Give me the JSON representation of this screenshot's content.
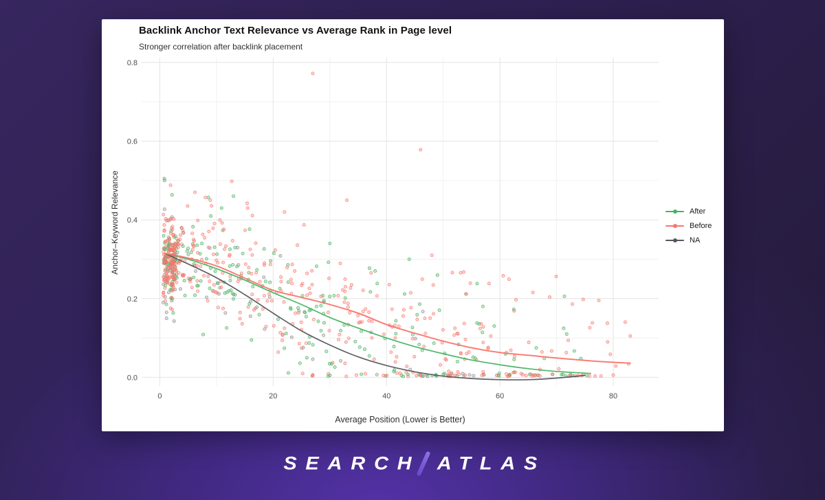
{
  "brand": {
    "left": "SEARCH",
    "right": "ATLAS"
  },
  "chart_data": {
    "type": "scatter",
    "title": "Backlink Anchor Text Relevance vs Average Rank in Page level",
    "subtitle": "Stronger correlation after backlink placement",
    "xlabel": "Average Position (Lower is Better)",
    "ylabel": "Anchor–Keyword Relevance",
    "xlim": [
      -3.2,
      88
    ],
    "ylim": [
      -0.022,
      0.812
    ],
    "x_ticks": [
      0,
      20,
      40,
      60,
      80
    ],
    "x_tick_labels": [
      "0",
      "20",
      "40",
      "60",
      "80"
    ],
    "x_minor": [
      10,
      30,
      50,
      70
    ],
    "y_ticks": [
      0.0,
      0.2,
      0.4,
      0.6,
      0.8
    ],
    "y_tick_labels": [
      "0.0",
      "0.2",
      "0.4",
      "0.6",
      "0.8"
    ],
    "y_minor": [
      0.1,
      0.3,
      0.5,
      0.7
    ],
    "grid": "on",
    "legend_position": "right",
    "seed": 7,
    "colors": {
      "major_grid": "#e4e4e4",
      "minor_grid": "#f1f1f1",
      "tick_text": "#4d4d4d"
    },
    "series": [
      {
        "name": "After",
        "color": "#44b25f",
        "point_color": "#44b25f",
        "trend": [
          [
            1,
            0.314
          ],
          [
            5,
            0.3
          ],
          [
            10,
            0.276
          ],
          [
            15,
            0.247
          ],
          [
            20,
            0.215
          ],
          [
            25,
            0.185
          ],
          [
            30,
            0.152
          ],
          [
            35,
            0.125
          ],
          [
            40,
            0.1
          ],
          [
            45,
            0.078
          ],
          [
            50,
            0.06
          ],
          [
            55,
            0.044
          ],
          [
            60,
            0.032
          ],
          [
            65,
            0.022
          ],
          [
            70,
            0.015
          ],
          [
            76,
            0.01
          ]
        ],
        "outliers": [
          [
            0.8,
            0.505
          ],
          [
            10.9,
            0.43
          ],
          [
            13,
            0.46
          ],
          [
            9,
            0.41
          ],
          [
            30,
            0.34
          ],
          [
            44,
            0.3
          ],
          [
            38,
            0.27
          ],
          [
            57,
            0.18
          ]
        ],
        "cloud": {
          "n": 250,
          "cluster_frac": 0.26,
          "cluster_x": [
            0.6,
            2.8
          ],
          "cluster_y_mean": 0.3,
          "cluster_y_sd": 0.05,
          "tail_pow": 1.7,
          "x_max": 76,
          "sigma0": 0.04,
          "sigma_slope": 0.0007,
          "floor_n": 8,
          "floor_x": [
            20,
            52
          ],
          "floor_y_max": 0.018
        }
      },
      {
        "name": "Before",
        "color": "#f8766d",
        "point_color": "#f8766d",
        "trend": [
          [
            1,
            0.315
          ],
          [
            5,
            0.303
          ],
          [
            10,
            0.283
          ],
          [
            15,
            0.252
          ],
          [
            20,
            0.221
          ],
          [
            25,
            0.203
          ],
          [
            30,
            0.185
          ],
          [
            35,
            0.163
          ],
          [
            40,
            0.134
          ],
          [
            45,
            0.112
          ],
          [
            50,
            0.092
          ],
          [
            55,
            0.075
          ],
          [
            60,
            0.063
          ],
          [
            65,
            0.056
          ],
          [
            70,
            0.049
          ],
          [
            75,
            0.043
          ],
          [
            79,
            0.039
          ],
          [
            83,
            0.036
          ]
        ],
        "outliers": [
          [
            27,
            0.772
          ],
          [
            46,
            0.578
          ],
          [
            1.9,
            0.488
          ],
          [
            12.7,
            0.498
          ],
          [
            8.9,
            0.45
          ],
          [
            33,
            0.45
          ],
          [
            6.2,
            0.47
          ],
          [
            15.5,
            0.43
          ],
          [
            22,
            0.42
          ],
          [
            48,
            0.31
          ],
          [
            51.6,
            0.266
          ],
          [
            83,
            0.105
          ],
          [
            79,
            0.09
          ]
        ],
        "cloud": {
          "n": 430,
          "cluster_frac": 0.22,
          "cluster_x": [
            0.6,
            2.8
          ],
          "cluster_y_mean": 0.303,
          "cluster_y_sd": 0.052,
          "tail_pow": 1.55,
          "x_max": 83,
          "sigma0": 0.042,
          "sigma_slope": 0.0008,
          "floor_n": 22,
          "floor_x": [
            24,
            68
          ],
          "floor_y_max": 0.012
        }
      },
      {
        "name": "NA",
        "color": "#55555d",
        "point_color": "#8e8e8e",
        "trend": [
          [
            1,
            0.314
          ],
          [
            5,
            0.288
          ],
          [
            10,
            0.253
          ],
          [
            15,
            0.21
          ],
          [
            20,
            0.163
          ],
          [
            25,
            0.118
          ],
          [
            30,
            0.082
          ],
          [
            35,
            0.052
          ],
          [
            40,
            0.03
          ],
          [
            45,
            0.014
          ],
          [
            50,
            0.003
          ],
          [
            55,
            -0.003
          ],
          [
            60,
            -0.006
          ],
          [
            65,
            -0.006
          ],
          [
            70,
            -0.002
          ],
          [
            75,
            0.005
          ]
        ],
        "outliers": [
          [
            0.85,
            0.5
          ],
          [
            0.85,
            0.427
          ],
          [
            1.2,
            0.165
          ],
          [
            1.2,
            0.15
          ],
          [
            16,
            0.155
          ],
          [
            13,
            0.21
          ],
          [
            2.0,
            0.235
          ]
        ],
        "cloud": {
          "n": 58,
          "cluster_frac": 0.38,
          "cluster_x": [
            0.6,
            2.6
          ],
          "cluster_y_mean": 0.295,
          "cluster_y_sd": 0.048,
          "tail_pow": 2.0,
          "x_max": 56,
          "sigma0": 0.035,
          "sigma_slope": 0.0006,
          "floor_n": 7,
          "floor_x": [
            40,
            62
          ],
          "floor_y_max": 0.008
        }
      }
    ]
  }
}
